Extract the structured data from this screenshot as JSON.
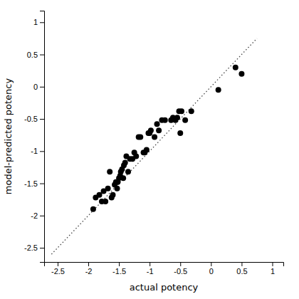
{
  "chart_data": {
    "type": "scatter",
    "xlabel": "actual potency",
    "ylabel": "model-predicted potency",
    "xlim": [
      -2.72,
      1.18
    ],
    "ylim": [
      -2.72,
      1.18
    ],
    "xticks": [
      -2.5,
      -2.0,
      -1.5,
      -1.0,
      -0.5,
      0.0,
      0.5,
      1.0
    ],
    "yticks": [
      -2.5,
      -2.0,
      -1.5,
      -1.0,
      -0.5,
      0.0,
      0.5,
      1.0
    ],
    "series": [
      {
        "type": "scatter",
        "color": "#000000",
        "x": [
          -1.92,
          -1.88,
          -1.82,
          -1.78,
          -1.75,
          -1.72,
          -1.68,
          -1.65,
          -1.62,
          -1.6,
          -1.57,
          -1.55,
          -1.53,
          -1.52,
          -1.5,
          -1.48,
          -1.47,
          -1.45,
          -1.43,
          -1.42,
          -1.4,
          -1.38,
          -1.35,
          -1.32,
          -1.28,
          -1.25,
          -1.22,
          -1.18,
          -1.15,
          -1.1,
          -1.08,
          -1.05,
          -1.02,
          -1.0,
          -0.98,
          -0.92,
          -0.88,
          -0.85,
          -0.8,
          -0.75,
          -0.65,
          -0.62,
          -0.58,
          -0.55,
          -0.52,
          -0.5,
          -0.48,
          -0.42,
          -0.32,
          0.12,
          0.4,
          0.5
        ],
        "values": [
          -1.9,
          -1.72,
          -1.68,
          -1.78,
          -1.62,
          -1.78,
          -1.58,
          -1.32,
          -1.72,
          -1.68,
          -1.52,
          -1.48,
          -1.58,
          -1.48,
          -1.42,
          -1.38,
          -1.32,
          -1.28,
          -1.42,
          -1.22,
          -1.18,
          -1.08,
          -1.32,
          -1.12,
          -1.12,
          -1.02,
          -1.08,
          -0.78,
          -0.78,
          -1.02,
          -1.02,
          -0.98,
          -0.72,
          -0.72,
          -0.68,
          -0.78,
          -0.58,
          -0.68,
          -0.52,
          -0.52,
          -0.52,
          -0.48,
          -0.52,
          -0.48,
          -0.38,
          -0.72,
          -0.38,
          -0.52,
          -0.38,
          -0.05,
          0.3,
          0.2
        ]
      },
      {
        "type": "line",
        "line_style": "dotted",
        "color": "#444444",
        "x": [
          -2.6,
          0.75
        ],
        "values": [
          -2.6,
          0.75
        ]
      }
    ]
  }
}
